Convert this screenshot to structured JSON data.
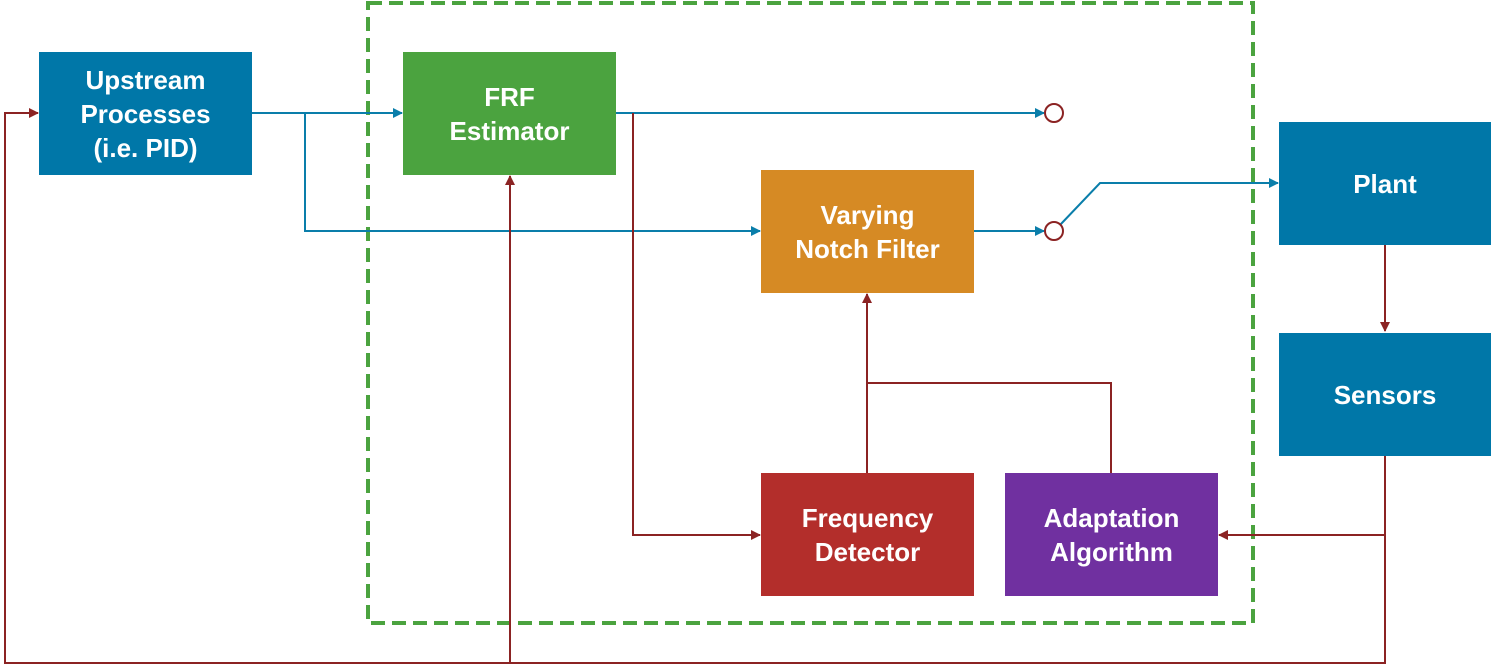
{
  "blocks": {
    "upstream": {
      "label": "Upstream\nProcesses\n(i.e. PID)",
      "color": "#0077A8"
    },
    "frf": {
      "label": "FRF\nEstimator",
      "color": "#4BA33F"
    },
    "notch": {
      "label": "Varying\nNotch Filter",
      "color": "#D68A24"
    },
    "freq": {
      "label": "Frequency\nDetector",
      "color": "#B32E2B"
    },
    "adapt": {
      "label": "Adaptation\nAlgorithm",
      "color": "#7030A0"
    },
    "plant": {
      "label": "Plant",
      "color": "#0077A8"
    },
    "sensors": {
      "label": "Sensors",
      "color": "#0077A8"
    }
  },
  "colors": {
    "signal": "#0A7EAA",
    "feedback": "#8B2323",
    "boundary": "#4BA33F"
  }
}
